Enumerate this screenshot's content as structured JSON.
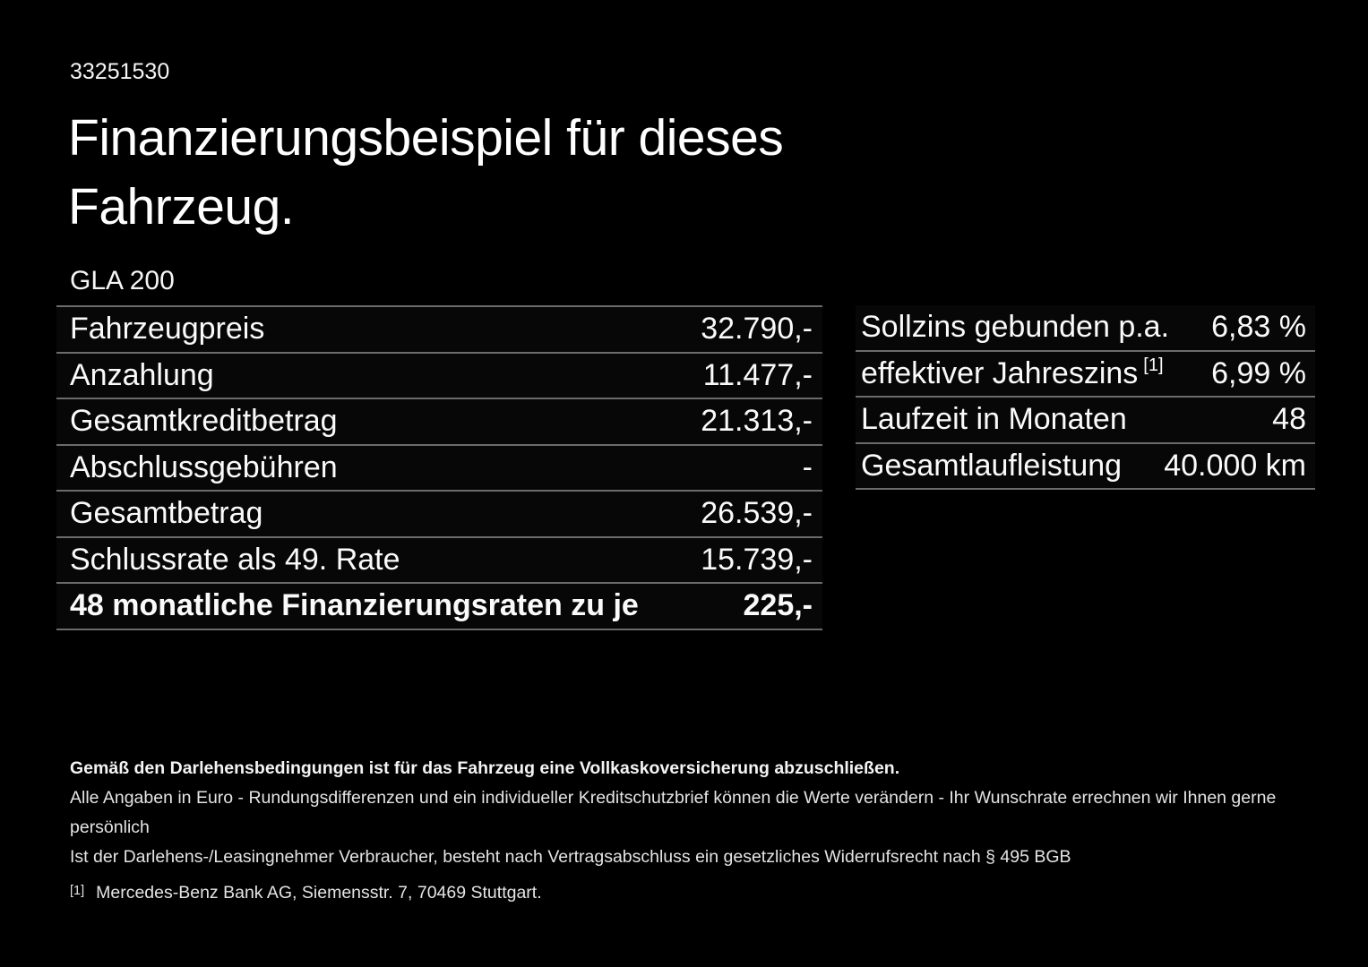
{
  "page": {
    "id_number": "33251530",
    "title_line1": "Finanzierungsbeispiel für dieses",
    "title_line2": "Fahrzeug.",
    "model": "GLA 200"
  },
  "finance_table": {
    "rows": [
      {
        "label": "Fahrzeugpreis",
        "value": "32.790,-",
        "bold": false
      },
      {
        "label": "Anzahlung",
        "value": "11.477,-",
        "bold": false
      },
      {
        "label": "Gesamtkreditbetrag",
        "value": "21.313,-",
        "bold": false
      },
      {
        "label": "Abschlussgebühren",
        "value": "-",
        "bold": false
      },
      {
        "label": "Gesamtbetrag",
        "value": "26.539,-",
        "bold": false
      },
      {
        "label": "Schlussrate als 49. Rate",
        "value": "15.739,-",
        "bold": false
      },
      {
        "label": "48 monatliche Finanzierungsraten zu je",
        "value": "225,-",
        "bold": true
      }
    ]
  },
  "conditions_table": {
    "rows": [
      {
        "label": "Sollzins gebunden p.a.",
        "value": "6,83 %",
        "bold": false
      },
      {
        "label": "effektiver Jahreszins",
        "superscript": "[1]",
        "value": "6,99 %",
        "bold": false
      },
      {
        "label": "Laufzeit in Monaten",
        "value": "48",
        "bold": false
      },
      {
        "label": "Gesamtlaufleistung",
        "value": "40.000 km",
        "bold": false
      }
    ]
  },
  "footnotes": {
    "insurance_note": "Gemäß den Darlehensbedingungen ist für das Fahrzeug eine Vollkaskoversicherung abzuschließen.",
    "disclaimer_line1": "Alle Angaben in Euro - Rundungsdifferenzen und ein individueller Kreditschutzbrief können die Werte verändern - Ihr Wunschrate errechnen wir Ihnen gerne persönlich",
    "disclaimer_line2": "Ist der Darlehens-/Leasingnehmer Verbraucher, besteht nach Vertragsabschluss ein gesetzliches Widerrufsrecht nach § 495 BGB",
    "source_marker": "[1]",
    "source_text": "Mercedes-Benz Bank AG, Siemensstr. 7, 70469 Stuttgart."
  },
  "colors": {
    "background": "#000000",
    "text": "#ffffff",
    "secondary_text": "#e4e4e4",
    "divider": "#6b6b6b"
  }
}
